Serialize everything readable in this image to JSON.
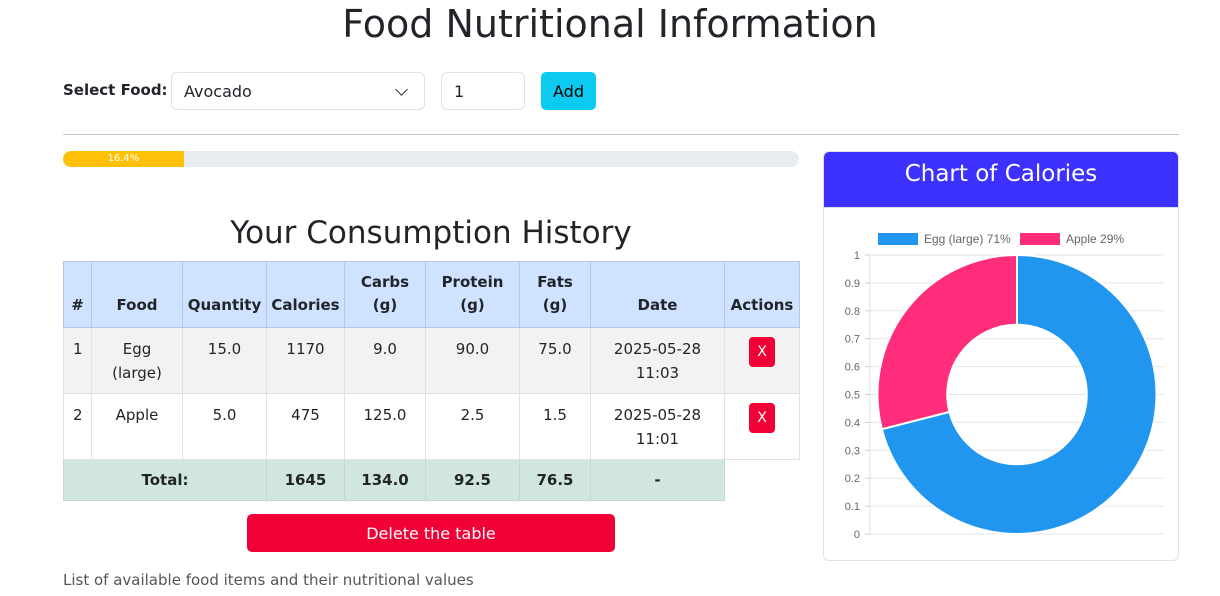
{
  "page": {
    "title": "Food Nutritional Information",
    "select_label": "Select Food:",
    "selected_food": "Avocado",
    "quantity": "1",
    "add_label": "Add",
    "progress": {
      "percent": 16.4,
      "label": "16.4%",
      "color": "#ffc107"
    },
    "history_title": "Your Consumption History",
    "delete_table_label": "Delete the table",
    "footer_text": "List of available food items and their nutritional values"
  },
  "table": {
    "headers": [
      "#",
      "Food",
      "Quantity",
      "Calories",
      "Carbs (g)",
      "Protein (g)",
      "Fats (g)",
      "Date",
      "Actions"
    ],
    "rows": [
      {
        "idx": "1",
        "food": "Egg (large)",
        "quantity": "15.0",
        "calories": "1170",
        "carbs": "9.0",
        "protein": "90.0",
        "fats": "75.0",
        "date": "2025-05-28 11:03",
        "action": "X"
      },
      {
        "idx": "2",
        "food": "Apple",
        "quantity": "5.0",
        "calories": "475",
        "carbs": "125.0",
        "protein": "2.5",
        "fats": "1.5",
        "date": "2025-05-28 11:01",
        "action": "X"
      }
    ],
    "totals": {
      "label": "Total:",
      "calories": "1645",
      "carbs": "134.0",
      "protein": "92.5",
      "fats": "76.5",
      "date": "-"
    }
  },
  "chart_card": {
    "title": "Chart of Calories",
    "header_color": "#3d31ff"
  },
  "chart_data": {
    "type": "pie",
    "variant": "doughnut",
    "legend_position": "top",
    "slices": [
      {
        "label": "Egg (large) 71%",
        "value": 71,
        "color": "#2196ee"
      },
      {
        "label": "Apple 29%",
        "value": 29,
        "color": "#ff2d7c"
      }
    ],
    "y_ticks": [
      "1",
      "0.9",
      "0.8",
      "0.7",
      "0.6",
      "0.5",
      "0.4",
      "0.3",
      "0.2",
      "0.1",
      "0"
    ],
    "ylim": [
      0,
      1
    ],
    "grid": true
  }
}
